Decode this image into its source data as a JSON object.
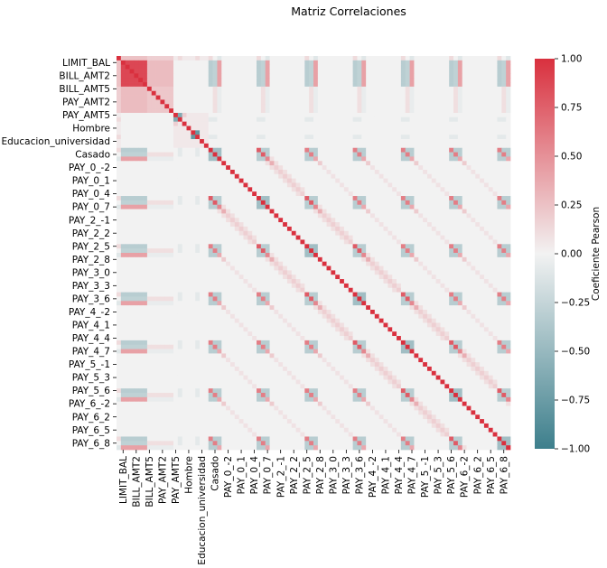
{
  "chart_data": {
    "type": "heatmap",
    "title": "Matriz Correlaciones",
    "n": 90,
    "x_tick_labels": [
      "LIMIT_BAL",
      "BILL_AMT2",
      "BILL_AMT5",
      "PAY_AMT2",
      "PAY_AMT5",
      "Hombre",
      "Educacion_universidad",
      "Casado",
      "PAY_0_-2",
      "PAY_0_1",
      "PAY_0_4",
      "PAY_0_7",
      "PAY_2_-1",
      "PAY_2_2",
      "PAY_2_5",
      "PAY_2_8",
      "PAY_3_0",
      "PAY_3_3",
      "PAY_3_6",
      "PAY_4_-2",
      "PAY_4_1",
      "PAY_4_4",
      "PAY_4_7",
      "PAY_5_-1",
      "PAY_5_3",
      "PAY_5_6",
      "PAY_6_-2",
      "PAY_6_2",
      "PAY_6_5",
      "PAY_6_8"
    ],
    "y_tick_labels": [
      "LIMIT_BAL",
      "BILL_AMT2",
      "BILL_AMT5",
      "PAY_AMT2",
      "PAY_AMT5",
      "Hombre",
      "Educacion_universidad",
      "Casado",
      "PAY_0_-2",
      "PAY_0_1",
      "PAY_0_4",
      "PAY_0_7",
      "PAY_2_-1",
      "PAY_2_2",
      "PAY_2_5",
      "PAY_2_8",
      "PAY_3_0",
      "PAY_3_3",
      "PAY_3_6",
      "PAY_4_-2",
      "PAY_4_1",
      "PAY_4_4",
      "PAY_4_7",
      "PAY_5_-1",
      "PAY_5_3",
      "PAY_5_6",
      "PAY_6_-2",
      "PAY_6_2",
      "PAY_6_5",
      "PAY_6_8"
    ],
    "colorbar": {
      "label": "Coeficiente Pearson",
      "vmin": -1.0,
      "vmax": 1.0,
      "ticks": [
        "1.00",
        "0.75",
        "0.50",
        "0.25",
        "0.00",
        "−0.25",
        "−0.50",
        "−0.75",
        "−1.00"
      ],
      "tick_values": [
        1.0,
        0.75,
        0.5,
        0.25,
        0.0,
        -0.25,
        -0.5,
        -0.75,
        -1.0
      ],
      "colors": {
        "negative": "#3d7f8c",
        "neutral": "#f2f2f2",
        "positive": "#d9303e"
      }
    }
  }
}
